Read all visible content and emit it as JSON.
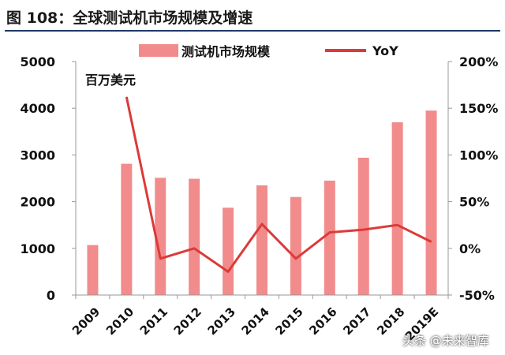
{
  "title": "图 108：全球测试机市场规模及增速",
  "watermark": "头条 @未来智库",
  "chart_data": {
    "type": "bar",
    "unit_label": "百万美元",
    "categories": [
      "2009",
      "2010",
      "2011",
      "2012",
      "2013",
      "2014",
      "2015",
      "2016",
      "2017",
      "2018",
      "2019E"
    ],
    "series": [
      {
        "name": "测试机市场规模",
        "type": "bar",
        "axis": "left",
        "color": "#f28b8b",
        "values": [
          1070,
          2810,
          2510,
          2490,
          1870,
          2350,
          2100,
          2450,
          2940,
          3700,
          3950
        ]
      },
      {
        "name": "YoY",
        "type": "line",
        "axis": "right",
        "color": "#dc3a3a",
        "values": [
          null,
          162,
          -11,
          0,
          -25,
          26,
          -11,
          17,
          20,
          25,
          7
        ]
      }
    ],
    "y_left": {
      "ticks": [
        0,
        1000,
        2000,
        3000,
        4000,
        5000
      ],
      "ylim": [
        0,
        5000
      ]
    },
    "y_right": {
      "ticks": [
        "-50%",
        "0%",
        "50%",
        "100%",
        "150%",
        "200%"
      ],
      "ylim": [
        -50,
        200
      ]
    },
    "legend_position": "top",
    "grid": false
  }
}
